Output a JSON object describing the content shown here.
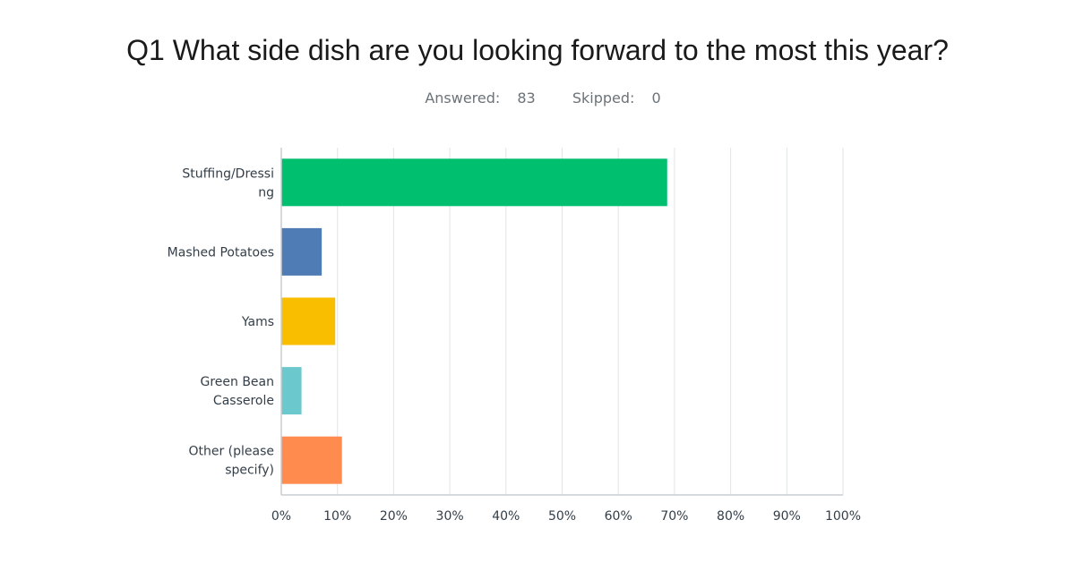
{
  "question": {
    "title": "Q1 What side dish are you looking forward to the most this year?",
    "answered_label": "Answered:",
    "answered_value": "83",
    "skipped_label": "Skipped:",
    "skipped_value": "0"
  },
  "chart_data": {
    "type": "bar",
    "orientation": "horizontal",
    "categories": [
      [
        "Stuffing/Dressi",
        "ng"
      ],
      [
        "Mashed Potatoes"
      ],
      [
        "Yams"
      ],
      [
        "Green Bean",
        "Casserole"
      ],
      [
        "Other (please",
        "specify)"
      ]
    ],
    "values": [
      68.7,
      7.2,
      9.6,
      3.6,
      10.8
    ],
    "colors": [
      "#00bf6f",
      "#507cb6",
      "#f9be00",
      "#6bc8cd",
      "#ff8b4f"
    ],
    "xlim": [
      0,
      100
    ],
    "ticks": [
      "0%",
      "10%",
      "20%",
      "30%",
      "40%",
      "50%",
      "60%",
      "70%",
      "80%",
      "90%",
      "100%"
    ],
    "grid": true
  }
}
